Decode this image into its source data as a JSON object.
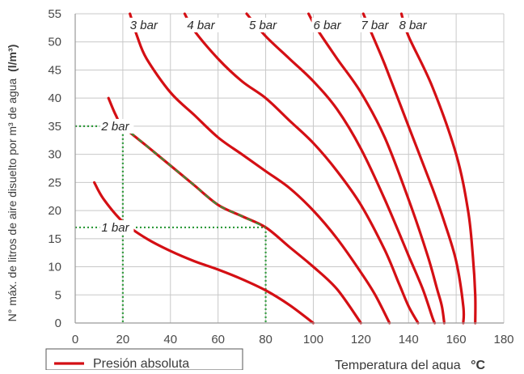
{
  "chart_data": {
    "type": "line",
    "xlabel": "Temperatura del agua",
    "xlabel_unit": "°C",
    "ylabel": "N° máx. de litros de aire disuelto por m³ de agua",
    "ylabel_unit": "(l/m³)",
    "xlim": [
      0,
      180
    ],
    "ylim": [
      0,
      55
    ],
    "xticks": [
      0,
      20,
      40,
      60,
      80,
      100,
      120,
      140,
      160,
      180
    ],
    "yticks": [
      0,
      5,
      10,
      15,
      20,
      25,
      30,
      35,
      40,
      45,
      50,
      55
    ],
    "grid": true,
    "legend": {
      "position": "bottom-left",
      "label": "Presión absoluta"
    },
    "colors": {
      "curve": "#d40f14",
      "guide": "#2e9a3a",
      "grid": "#c8c8c8",
      "axis": "#9a9a9a"
    },
    "series": [
      {
        "name": "1 bar",
        "points": [
          [
            8,
            25
          ],
          [
            12,
            22
          ],
          [
            20,
            18
          ],
          [
            30,
            15
          ],
          [
            40,
            12.8
          ],
          [
            50,
            11
          ],
          [
            60,
            9.5
          ],
          [
            70,
            7.8
          ],
          [
            80,
            5.8
          ],
          [
            90,
            3.2
          ],
          [
            100,
            0
          ]
        ]
      },
      {
        "name": "2 bar",
        "points": [
          [
            14,
            40
          ],
          [
            17,
            37
          ],
          [
            20,
            35
          ],
          [
            30,
            31.5
          ],
          [
            40,
            28
          ],
          [
            50,
            24.5
          ],
          [
            60,
            21
          ],
          [
            70,
            19
          ],
          [
            80,
            17
          ],
          [
            90,
            13.5
          ],
          [
            100,
            10
          ],
          [
            110,
            6
          ],
          [
            120,
            0
          ]
        ]
      },
      {
        "name": "3 bar",
        "points": [
          [
            23,
            55
          ],
          [
            26,
            51
          ],
          [
            30,
            47
          ],
          [
            40,
            41
          ],
          [
            50,
            37
          ],
          [
            60,
            33
          ],
          [
            70,
            30
          ],
          [
            80,
            27
          ],
          [
            90,
            24
          ],
          [
            100,
            20
          ],
          [
            110,
            15
          ],
          [
            120,
            9
          ],
          [
            126,
            5
          ],
          [
            132,
            0
          ]
        ]
      },
      {
        "name": "4 bar",
        "points": [
          [
            46,
            55
          ],
          [
            50,
            52
          ],
          [
            60,
            47
          ],
          [
            70,
            43
          ],
          [
            80,
            40
          ],
          [
            90,
            36
          ],
          [
            100,
            32
          ],
          [
            110,
            27
          ],
          [
            120,
            21
          ],
          [
            130,
            13
          ],
          [
            136,
            7
          ],
          [
            140,
            3
          ],
          [
            144,
            0
          ]
        ]
      },
      {
        "name": "5 bar",
        "points": [
          [
            72,
            55
          ],
          [
            80,
            51
          ],
          [
            90,
            47
          ],
          [
            100,
            43
          ],
          [
            110,
            38
          ],
          [
            120,
            31
          ],
          [
            130,
            22
          ],
          [
            140,
            12
          ],
          [
            146,
            6
          ],
          [
            150,
            1
          ],
          [
            151,
            0
          ]
        ]
      },
      {
        "name": "6 bar",
        "points": [
          [
            98,
            55
          ],
          [
            102,
            52
          ],
          [
            110,
            47
          ],
          [
            120,
            41
          ],
          [
            130,
            33
          ],
          [
            140,
            22
          ],
          [
            148,
            12
          ],
          [
            152,
            6
          ],
          [
            154,
            3
          ],
          [
            155,
            0
          ]
        ]
      },
      {
        "name": "7 bar",
        "points": [
          [
            121,
            55
          ],
          [
            125,
            51
          ],
          [
            130,
            46
          ],
          [
            140,
            35
          ],
          [
            150,
            24
          ],
          [
            155,
            18
          ],
          [
            160,
            11
          ],
          [
            163,
            3
          ],
          [
            163,
            0
          ]
        ]
      },
      {
        "name": "8 bar",
        "points": [
          [
            137,
            55
          ],
          [
            140,
            51
          ],
          [
            150,
            42
          ],
          [
            160,
            30
          ],
          [
            165,
            20
          ],
          [
            167,
            12
          ],
          [
            168,
            5
          ],
          [
            168,
            0
          ]
        ]
      }
    ],
    "curve_labels": [
      {
        "text": "3 bar",
        "x": 23,
        "y": 53
      },
      {
        "text": "4 bar",
        "x": 47,
        "y": 53
      },
      {
        "text": "5 bar",
        "x": 73,
        "y": 53
      },
      {
        "text": "6 bar",
        "x": 100,
        "y": 53
      },
      {
        "text": "7 bar",
        "x": 120,
        "y": 53
      },
      {
        "text": "8 bar",
        "x": 136,
        "y": 53
      },
      {
        "text": "2 bar",
        "x": 11,
        "y": 35
      },
      {
        "text": "1 bar",
        "x": 11,
        "y": 17
      }
    ],
    "guide_lines": [
      {
        "from": [
          0,
          35
        ],
        "to": [
          20,
          35
        ]
      },
      {
        "from": [
          20,
          35
        ],
        "to": [
          20,
          0
        ]
      },
      {
        "from": [
          0,
          17
        ],
        "to": [
          80,
          17
        ]
      },
      {
        "from": [
          80,
          17
        ],
        "to": [
          80,
          0
        ]
      }
    ],
    "highlight_segment": {
      "series": "2 bar",
      "from_x": 20,
      "to_x": 80
    }
  }
}
